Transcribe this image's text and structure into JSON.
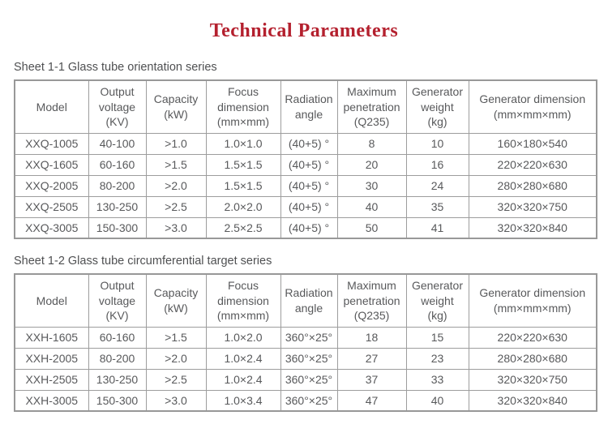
{
  "page": {
    "title": "Technical Parameters",
    "title_color": "#b4202e",
    "border_color": "#9d9d9d",
    "text_color": "#58595b"
  },
  "tables": [
    {
      "caption": "Sheet 1-1 Glass tube orientation series",
      "columns": [
        "Model",
        "Output\nvoltage\n(KV)",
        "Capacity\n(kW)",
        "Focus\ndimension\n(mm×mm)",
        "Radiation\nangle",
        "Maximum\npenetration\n(Q235)",
        "Generator\nweight\n(kg)",
        "Generator dimension\n(mm×mm×mm)"
      ],
      "rows": [
        [
          "XXQ-1005",
          "40-100",
          ">1.0",
          "1.0×1.0",
          "(40+5) °",
          "8",
          "10",
          "160×180×540"
        ],
        [
          "XXQ-1605",
          "60-160",
          ">1.5",
          "1.5×1.5",
          "(40+5) °",
          "20",
          "16",
          "220×220×630"
        ],
        [
          "XXQ-2005",
          "80-200",
          ">2.0",
          "1.5×1.5",
          "(40+5) °",
          "30",
          "24",
          "280×280×680"
        ],
        [
          "XXQ-2505",
          "130-250",
          ">2.5",
          "2.0×2.0",
          "(40+5) °",
          "40",
          "35",
          "320×320×750"
        ],
        [
          "XXQ-3005",
          "150-300",
          ">3.0",
          "2.5×2.5",
          "(40+5) °",
          "50",
          "41",
          "320×320×840"
        ]
      ]
    },
    {
      "caption": "Sheet 1-2 Glass tube circumferential target series",
      "columns": [
        "Model",
        "Output\nvoltage\n(KV)",
        "Capacity\n(kW)",
        "Focus\ndimension\n(mm×mm)",
        "Radiation\nangle",
        "Maximum\npenetration\n(Q235)",
        "Generator\nweight\n(kg)",
        "Generator dimension\n(mm×mm×mm)"
      ],
      "rows": [
        [
          "XXH-1605",
          "60-160",
          ">1.5",
          "1.0×2.0",
          "360°×25°",
          "18",
          "15",
          "220×220×630"
        ],
        [
          "XXH-2005",
          "80-200",
          ">2.0",
          "1.0×2.4",
          "360°×25°",
          "27",
          "23",
          "280×280×680"
        ],
        [
          "XXH-2505",
          "130-250",
          ">2.5",
          "1.0×2.4",
          "360°×25°",
          "37",
          "33",
          "320×320×750"
        ],
        [
          "XXH-3005",
          "150-300",
          ">3.0",
          "1.0×3.4",
          "360°×25°",
          "47",
          "40",
          "320×320×840"
        ]
      ]
    }
  ]
}
